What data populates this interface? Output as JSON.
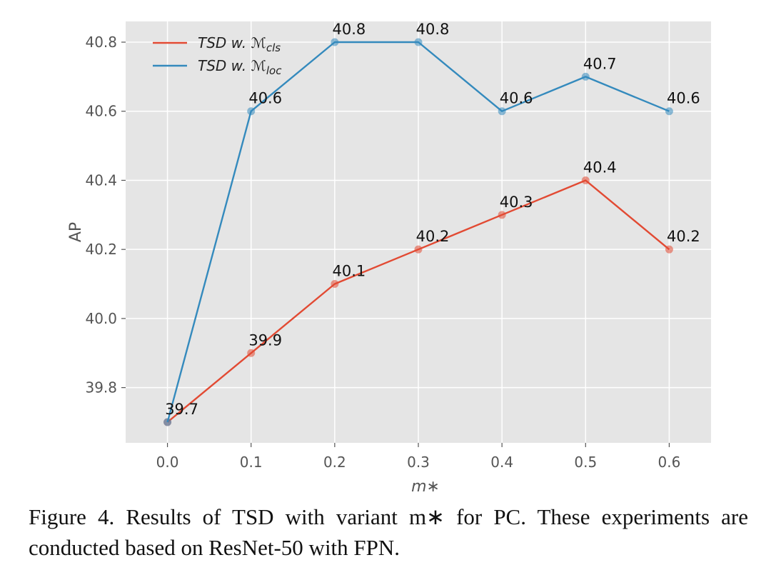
{
  "chart_data": {
    "type": "line",
    "title": "",
    "xlabel": "m∗",
    "ylabel": "AP",
    "x": [
      0.0,
      0.1,
      0.2,
      0.3,
      0.4,
      0.5,
      0.6
    ],
    "x_tick_labels": [
      "0.0",
      "0.1",
      "0.2",
      "0.3",
      "0.4",
      "0.5",
      "0.6"
    ],
    "y_ticks": [
      39.8,
      40.0,
      40.2,
      40.4,
      40.6,
      40.8
    ],
    "y_tick_labels": [
      "39.8",
      "40.0",
      "40.2",
      "40.4",
      "40.6",
      "40.8"
    ],
    "xlim": [
      -0.05,
      0.65
    ],
    "ylim": [
      39.64,
      40.86
    ],
    "grid": true,
    "legend_position": "top-left",
    "series": [
      {
        "name": "TSD w. ℳcls",
        "legend_base": "TSD w. ℳ",
        "legend_sub": "cls",
        "color": "#e24a33",
        "values": [
          39.7,
          39.9,
          40.1,
          40.2,
          40.3,
          40.4,
          40.2
        ],
        "labels": [
          "39.7",
          "39.9",
          "40.1",
          "40.2",
          "40.3",
          "40.4",
          "40.2"
        ]
      },
      {
        "name": "TSD w. ℳloc",
        "legend_base": "TSD w. ℳ",
        "legend_sub": "loc",
        "color": "#348abd",
        "values": [
          39.7,
          40.6,
          40.8,
          40.8,
          40.6,
          40.7,
          40.6
        ],
        "labels": [
          "",
          "40.6",
          "40.8",
          "40.8",
          "40.6",
          "40.7",
          "40.6"
        ]
      }
    ]
  },
  "caption": "Figure 4. Results of TSD with variant m∗ for PC. These experiments are conducted based on ResNet-50 with FPN."
}
